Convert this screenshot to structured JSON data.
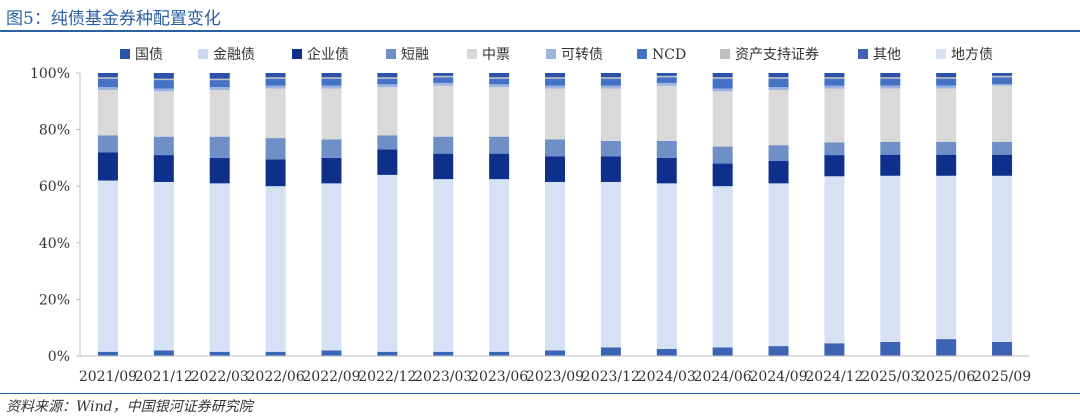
{
  "figure": {
    "title": "图5：纯债基金券种配置变化",
    "source": "资料来源：Wind，中国银河证券研究院"
  },
  "chart_data": {
    "type": "bar",
    "stacked": true,
    "normalized": true,
    "categories": [
      "2021/09",
      "2021/12",
      "2022/03",
      "2022/06",
      "2022/09",
      "2022/12",
      "2023/03",
      "2023/06",
      "2023/09",
      "2023/12",
      "2024/03",
      "2024/06",
      "2024/09",
      "2024/12",
      "2025/03",
      "2025/06",
      "2025/09"
    ],
    "yticks": [
      "0%",
      "20%",
      "40%",
      "60%",
      "80%",
      "100%"
    ],
    "ylim": [
      0,
      100
    ],
    "grid": false,
    "legend_position": "top",
    "series": [
      {
        "name": "其他",
        "color": "#3d63b4",
        "values": [
          1.5,
          2.0,
          1.5,
          1.5,
          2.0,
          1.5,
          1.5,
          1.5,
          2.0,
          3.0,
          2.5,
          3.0,
          3.5,
          4.5,
          5.0,
          6.0,
          5.0
        ]
      },
      {
        "name": "地方债",
        "color": "#d6e1f3",
        "values": [
          60.5,
          59.5,
          59.5,
          58.5,
          59.0,
          62.5,
          61.0,
          61.0,
          59.5,
          58.5,
          58.5,
          57.0,
          57.5,
          59.0,
          59.0,
          58.0,
          59.0
        ]
      },
      {
        "name": "企业债",
        "color": "#0f2f8c",
        "values": [
          10.0,
          9.5,
          9.0,
          9.5,
          9.0,
          9.0,
          9.0,
          9.0,
          9.0,
          9.0,
          9.0,
          8.0,
          8.0,
          7.5,
          7.5,
          7.5,
          7.5
        ]
      },
      {
        "name": "短融",
        "color": "#6f8fc7",
        "values": [
          6.0,
          6.5,
          7.5,
          7.5,
          6.5,
          5.0,
          6.0,
          6.0,
          6.0,
          5.5,
          6.0,
          6.0,
          5.5,
          4.5,
          4.5,
          4.5,
          4.5
        ]
      },
      {
        "name": "中票",
        "color": "#d9d9d9",
        "values": [
          16.0,
          16.0,
          16.5,
          17.5,
          18.0,
          17.0,
          18.0,
          17.5,
          18.0,
          18.5,
          19.5,
          19.5,
          19.5,
          19.0,
          19.0,
          19.0,
          20.0
        ]
      },
      {
        "name": "国债",
        "color": "#2a52a7",
        "values": [
          0,
          0,
          0,
          0,
          0,
          0,
          0,
          0,
          0,
          0,
          0,
          0,
          0,
          0,
          0,
          0,
          0
        ]
      },
      {
        "name": "金融债",
        "color": "#c9d9f0",
        "values": [
          0,
          0,
          0,
          0,
          0,
          0,
          0,
          0,
          0,
          0,
          0,
          0,
          0,
          0,
          0,
          0,
          0
        ]
      },
      {
        "name": "可转债",
        "color": "#9cb4e0",
        "values": [
          1.0,
          1.0,
          1.0,
          1.0,
          1.0,
          1.0,
          1.0,
          1.0,
          1.0,
          1.0,
          1.0,
          1.0,
          1.0,
          1.0,
          1.0,
          1.0,
          0.5
        ]
      },
      {
        "name": "NCD",
        "color": "#4472c4",
        "values": [
          3.0,
          3.0,
          2.5,
          2.5,
          2.5,
          2.0,
          2.0,
          2.0,
          2.5,
          2.5,
          2.0,
          3.5,
          3.0,
          2.5,
          2.5,
          2.5,
          2.5
        ]
      },
      {
        "name": "资产支持证券",
        "color": "#bfbfbf",
        "values": [
          0.5,
          0.5,
          0.5,
          0.5,
          0.5,
          0.5,
          0.5,
          0.5,
          0.5,
          0.5,
          0.5,
          0.5,
          0.5,
          0.5,
          0.5,
          0.5,
          0.5
        ]
      },
      {
        "name": "国债-top",
        "color": "#2a52a7",
        "values": [
          1.5,
          2.0,
          2.0,
          1.5,
          1.5,
          1.5,
          1.0,
          1.5,
          1.5,
          1.5,
          1.0,
          1.5,
          1.5,
          1.5,
          1.5,
          1.5,
          1.0
        ]
      }
    ],
    "legend": [
      {
        "name": "国债",
        "color": "#2a52a7"
      },
      {
        "name": "金融债",
        "color": "#c9d9f0"
      },
      {
        "name": "企业债",
        "color": "#0f2f8c"
      },
      {
        "name": "短融",
        "color": "#6f8fc7"
      },
      {
        "name": "中票",
        "color": "#d9d9d9"
      },
      {
        "name": "可转债",
        "color": "#9cb4e0"
      },
      {
        "name": "NCD",
        "color": "#4472c4"
      },
      {
        "name": "资产支持证券",
        "color": "#bfbfbf"
      },
      {
        "name": "其他",
        "color": "#3d63b4"
      },
      {
        "name": "地方债",
        "color": "#d6e1f3"
      }
    ]
  }
}
